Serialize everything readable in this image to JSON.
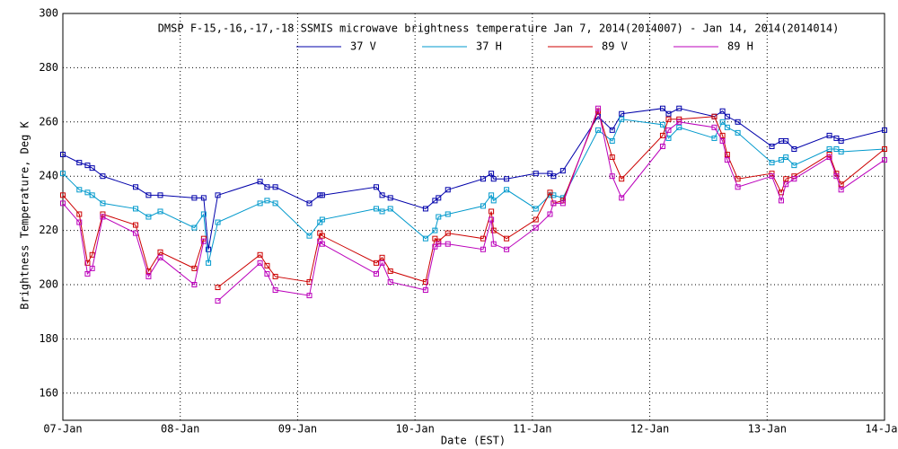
{
  "chart_data": {
    "type": "line",
    "title": "DMSP F-15,-16,-17,-18 SSMIS microwave brightness temperature Jan  7, 2014(2014007) - Jan 14, 2014(2014014)",
    "x_label": "Date (EST)",
    "y_label": "Brightness Temperature, Deg K",
    "x": [
      7.0,
      7.14,
      7.21,
      7.25,
      7.34,
      7.62,
      7.73,
      7.83,
      8.12,
      8.2,
      8.24,
      8.32,
      8.68,
      8.74,
      8.81,
      9.1,
      9.19,
      9.21,
      9.67,
      9.72,
      9.79,
      10.09,
      10.17,
      10.2,
      10.28,
      10.58,
      10.65,
      10.67,
      10.78,
      11.03,
      11.15,
      11.18,
      11.26,
      11.56,
      11.68,
      11.76,
      12.11,
      12.16,
      12.25,
      12.55,
      12.62,
      12.66,
      12.75,
      13.04,
      13.12,
      13.16,
      13.23,
      13.53,
      13.59,
      13.63,
      14.0
    ],
    "xlim": [
      7,
      14
    ],
    "xticks": [
      {
        "value": 7,
        "label": "07-Jan"
      },
      {
        "value": 8,
        "label": "08-Jan"
      },
      {
        "value": 9,
        "label": "09-Jan"
      },
      {
        "value": 10,
        "label": "10-Jan"
      },
      {
        "value": 11,
        "label": "11-Jan"
      },
      {
        "value": 12,
        "label": "12-Jan"
      },
      {
        "value": 13,
        "label": "13-Jan"
      },
      {
        "value": 14,
        "label": "14-Jan"
      }
    ],
    "ylim": [
      150,
      300
    ],
    "yticks": [
      160,
      180,
      200,
      220,
      240,
      260,
      280,
      300
    ],
    "grid": true,
    "series": [
      {
        "name": "37 V",
        "color": "#0000aa",
        "values": [
          248,
          245,
          244,
          243,
          240,
          236,
          233,
          233,
          232,
          232,
          213,
          233,
          238,
          236,
          236,
          230,
          233,
          233,
          236,
          233,
          232,
          228,
          231,
          232,
          235,
          239,
          241,
          239,
          239,
          241,
          241,
          240,
          242,
          262,
          257,
          263,
          265,
          263,
          265,
          262,
          264,
          262,
          260,
          251,
          253,
          253,
          250,
          255,
          254,
          253,
          257
        ]
      },
      {
        "name": "37 H",
        "color": "#0099cc",
        "values": [
          241,
          235,
          234,
          233,
          230,
          228,
          225,
          227,
          221,
          226,
          208,
          223,
          230,
          231,
          230,
          218,
          223,
          224,
          228,
          227,
          228,
          217,
          220,
          225,
          226,
          229,
          233,
          231,
          235,
          228,
          233,
          233,
          232,
          257,
          253,
          261,
          259,
          254,
          258,
          254,
          260,
          258,
          256,
          245,
          246,
          247,
          244,
          250,
          250,
          249,
          250
        ]
      },
      {
        "name": "89 V",
        "color": "#cc0000",
        "values": [
          233,
          226,
          208,
          211,
          226,
          222,
          205,
          212,
          206,
          217,
          null,
          199,
          211,
          207,
          203,
          201,
          219,
          218,
          208,
          210,
          205,
          201,
          217,
          216,
          219,
          217,
          227,
          220,
          217,
          224,
          234,
          230,
          231,
          264,
          247,
          239,
          255,
          261,
          261,
          262,
          255,
          248,
          239,
          241,
          234,
          239,
          240,
          248,
          241,
          237,
          250
        ]
      },
      {
        "name": "89 H",
        "color": "#bb00bb",
        "values": [
          230,
          223,
          204,
          206,
          225,
          219,
          203,
          210,
          200,
          216,
          null,
          194,
          208,
          204,
          198,
          196,
          216,
          215,
          204,
          208,
          201,
          198,
          214,
          215,
          215,
          213,
          224,
          215,
          213,
          221,
          226,
          230,
          230,
          265,
          240,
          232,
          251,
          257,
          260,
          258,
          253,
          246,
          236,
          240,
          231,
          237,
          239,
          247,
          240,
          235,
          246
        ]
      }
    ]
  }
}
